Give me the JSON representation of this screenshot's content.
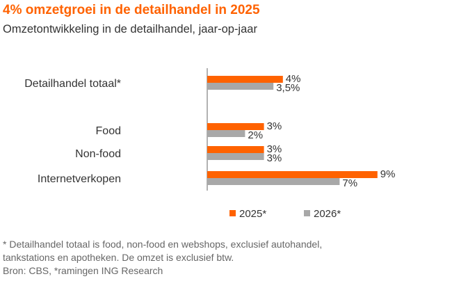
{
  "colors": {
    "accent": "#ff6200",
    "series2": "#a8a8a8",
    "axis": "#999999",
    "text": "#333333",
    "muted": "#666666"
  },
  "chart_data": {
    "type": "bar",
    "orientation": "horizontal",
    "title": "4% omzetgroei in de detailhandel in 2025",
    "subtitle": "Omzetontwikkeling in de detailhandel, jaar-op-jaar",
    "categories": [
      "Detailhandel totaal*",
      "Food",
      "Non-food",
      "Internetverkopen"
    ],
    "series": [
      {
        "name": "2025*",
        "color": "#ff6200",
        "values": [
          4,
          3,
          3,
          9
        ],
        "labels": [
          "4%",
          "3%",
          "3%",
          "9%"
        ]
      },
      {
        "name": "2026*",
        "color": "#a8a8a8",
        "values": [
          3.5,
          2,
          3,
          7
        ],
        "labels": [
          "3,5%",
          "2%",
          "3%",
          "7%"
        ]
      }
    ],
    "xlim": [
      0,
      9
    ],
    "grid": false,
    "legend": "bottom"
  },
  "footnote": {
    "line1": "* Detailhandel totaal is food, non-food en webshops, exclusief autohandel,",
    "line2": "tankstations en apotheken. De omzet is exclusief btw.",
    "line3": "Bron: CBS, *ramingen ING Research"
  }
}
